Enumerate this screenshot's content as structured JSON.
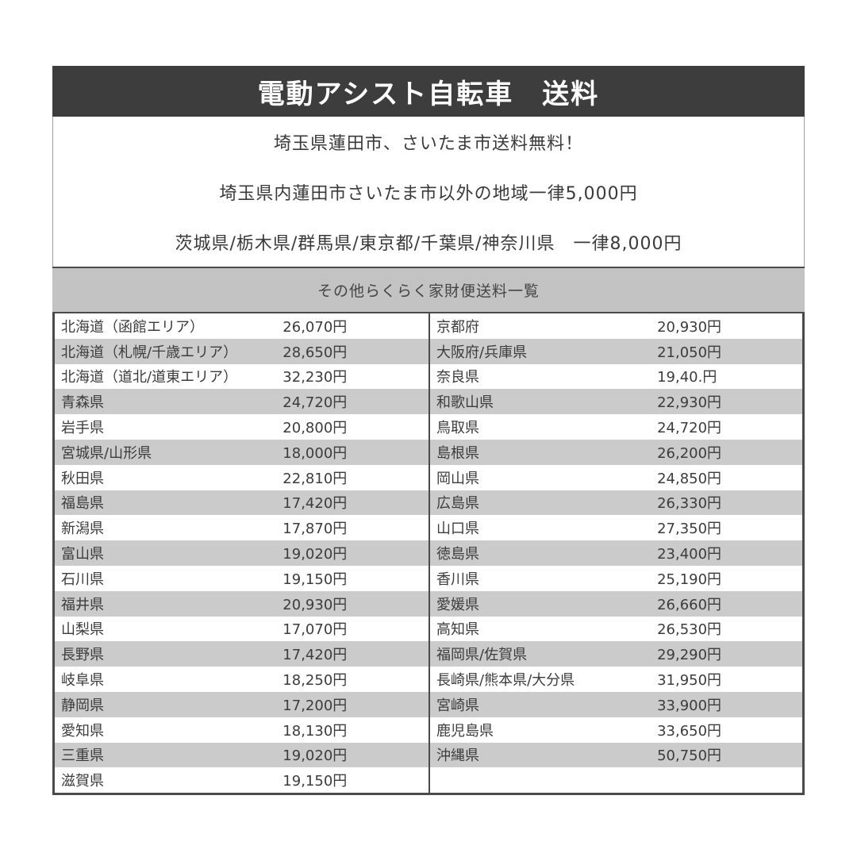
{
  "header": {
    "title": "電動アシスト自転車　送料"
  },
  "shipping_notes": {
    "line1": "埼玉県蓮田市、さいたま市送料無料！",
    "line2": "埼玉県内蓮田市さいたま市以外の地域一律5,000円",
    "line3": "茨城県/栃木県/群馬県/東京都/千葉県/神奈川県　一律8,000円"
  },
  "section_header": {
    "label": "その他らくらく家財便送料一覧"
  },
  "fee_table": {
    "rows": [
      {
        "left_name": "北海道（函館エリア）",
        "left_price": "26,070円",
        "right_name": "京都府",
        "right_price": "20,930円"
      },
      {
        "left_name": "北海道（札幌/千歳エリア）",
        "left_price": "28,650円",
        "right_name": "大阪府/兵庫県",
        "right_price": "21,050円"
      },
      {
        "left_name": "北海道（道北/道東エリア）",
        "left_price": "32,230円",
        "right_name": "奈良県",
        "right_price": "19,40.円"
      },
      {
        "left_name": "青森県",
        "left_price": "24,720円",
        "right_name": "和歌山県",
        "right_price": "22,930円"
      },
      {
        "left_name": "岩手県",
        "left_price": "20,800円",
        "right_name": "鳥取県",
        "right_price": "24,720円"
      },
      {
        "left_name": "宮城県/山形県",
        "left_price": "18,000円",
        "right_name": "島根県",
        "right_price": "26,200円"
      },
      {
        "left_name": "秋田県",
        "left_price": "22,810円",
        "right_name": "岡山県",
        "right_price": "24,850円"
      },
      {
        "left_name": "福島県",
        "left_price": "17,420円",
        "right_name": "広島県",
        "right_price": "26,330円"
      },
      {
        "left_name": "新潟県",
        "left_price": "17,870円",
        "right_name": "山口県",
        "right_price": "27,350円"
      },
      {
        "left_name": "富山県",
        "left_price": "19,020円",
        "right_name": "徳島県",
        "right_price": "23,400円"
      },
      {
        "left_name": "石川県",
        "left_price": "19,150円",
        "right_name": "香川県",
        "right_price": "25,190円"
      },
      {
        "left_name": "福井県",
        "left_price": "20,930円",
        "right_name": "愛媛県",
        "right_price": "26,660円"
      },
      {
        "left_name": "山梨県",
        "left_price": "17,070円",
        "right_name": "高知県",
        "right_price": "26,530円"
      },
      {
        "left_name": "長野県",
        "left_price": "17,420円",
        "right_name": "福岡県/佐賀県",
        "right_price": "29,290円"
      },
      {
        "left_name": "岐阜県",
        "left_price": "18,250円",
        "right_name": "長崎県/熊本県/大分県",
        "right_price": "31,950円"
      },
      {
        "left_name": "静岡県",
        "left_price": "17,200円",
        "right_name": "宮崎県",
        "right_price": "33,900円"
      },
      {
        "left_name": "愛知県",
        "left_price": "18,130円",
        "right_name": "鹿児島県",
        "right_price": "33,650円"
      },
      {
        "left_name": "三重県",
        "left_price": "19,020円",
        "right_name": "沖縄県",
        "right_price": "50,750円"
      },
      {
        "left_name": "滋賀県",
        "left_price": "19,150円",
        "right_name": "",
        "right_price": ""
      }
    ]
  },
  "colors": {
    "title_bar_bg": "#3d3d3d",
    "title_text": "#ffffff",
    "row_stripe": "#cbcbcb",
    "band_bg": "#c3c3c3",
    "border_dark": "#4a4a4a",
    "body_text": "#3c3c3c"
  }
}
